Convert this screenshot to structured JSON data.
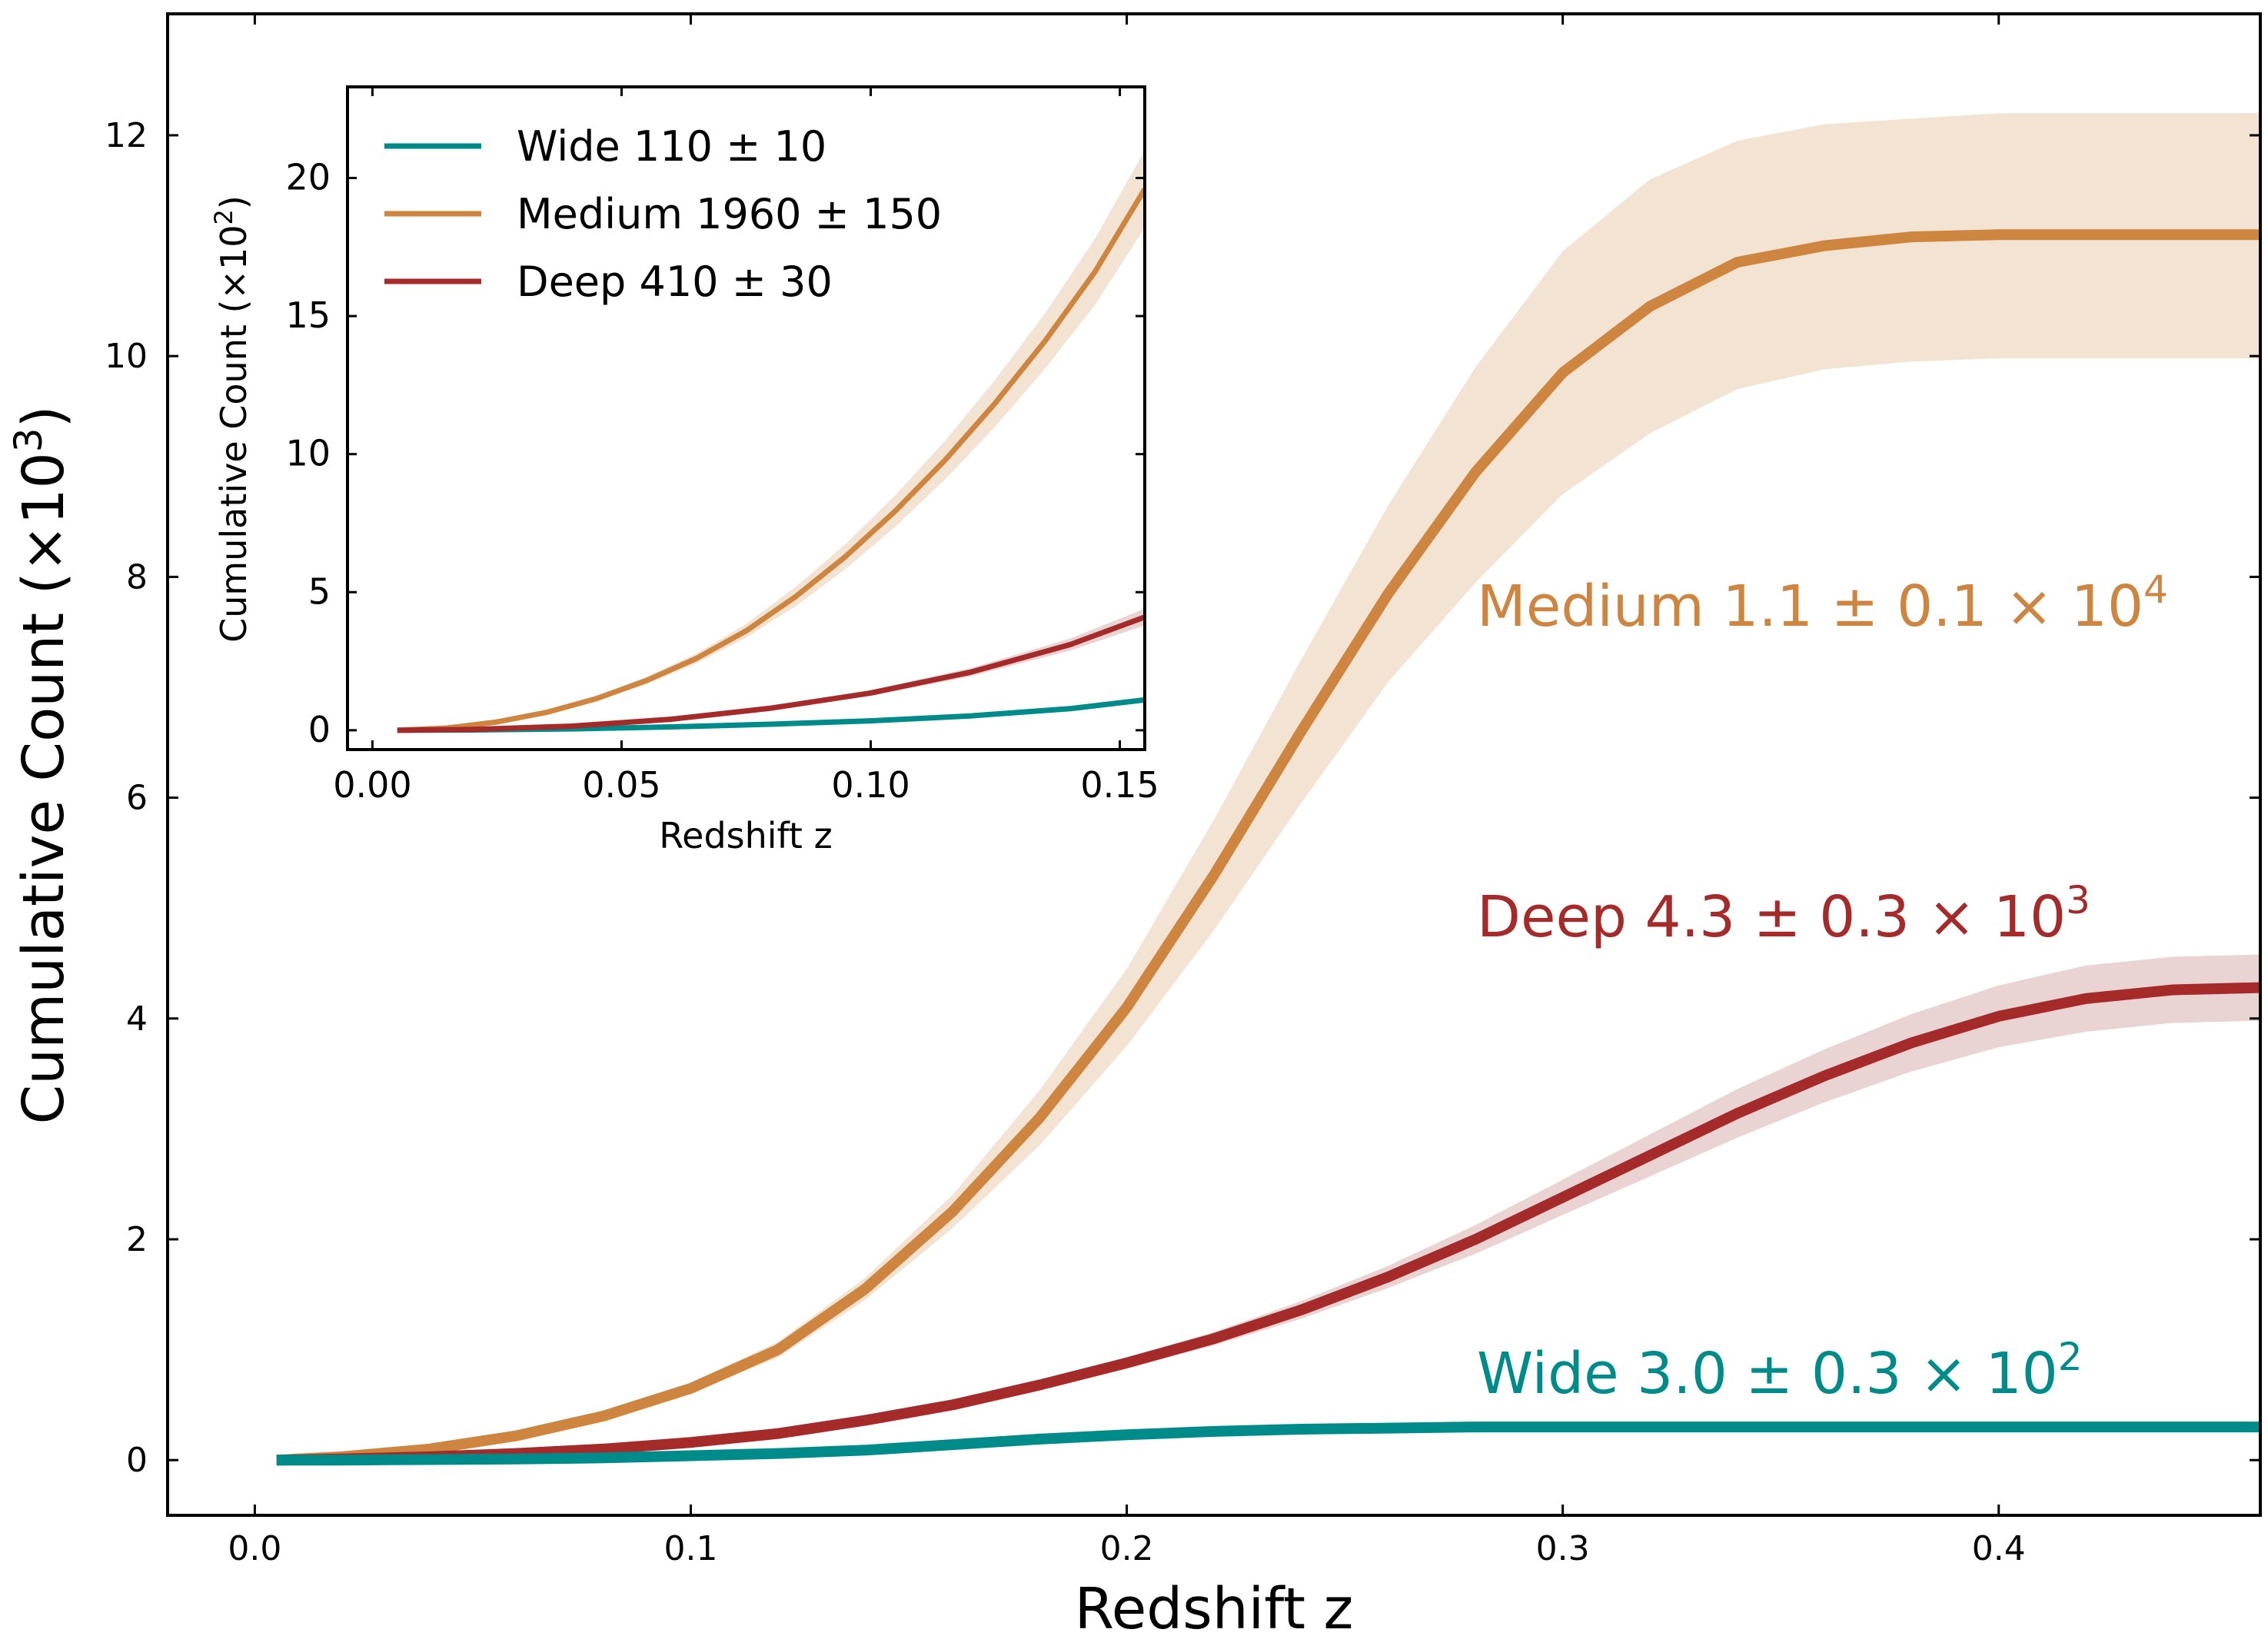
{
  "chart_data": [
    {
      "id": "main",
      "type": "line",
      "xlabel": "Redshift z",
      "ylabel": "Cumulative Count",
      "ylabel_unit": "(×10",
      "ylabel_unit_exp": "3",
      "ylabel_unit_close": ")",
      "xlim": [
        -0.02,
        0.46
      ],
      "ylim": [
        -0.5,
        13.1
      ],
      "xticks": [
        0.0,
        0.1,
        0.2,
        0.3,
        0.4
      ],
      "xtick_labels": [
        "0.0",
        "0.1",
        "0.2",
        "0.3",
        "0.4"
      ],
      "yticks": [
        0,
        2,
        4,
        6,
        8,
        10,
        12
      ],
      "ytick_labels": [
        "0",
        "2",
        "4",
        "6",
        "8",
        "10",
        "12"
      ],
      "series": [
        {
          "name": "Medium",
          "color": "#CD853F",
          "band_color": "#F3E3D3",
          "x": [
            0.005,
            0.02,
            0.04,
            0.06,
            0.08,
            0.1,
            0.12,
            0.14,
            0.16,
            0.18,
            0.2,
            0.22,
            0.24,
            0.26,
            0.28,
            0.3,
            0.32,
            0.34,
            0.36,
            0.38,
            0.4,
            0.42,
            0.44,
            0.46
          ],
          "y": [
            0.0,
            0.03,
            0.1,
            0.22,
            0.4,
            0.65,
            1.0,
            1.55,
            2.25,
            3.1,
            4.1,
            5.3,
            6.6,
            7.85,
            8.95,
            9.85,
            10.45,
            10.85,
            11.0,
            11.08,
            11.1,
            11.1,
            11.1,
            11.1
          ],
          "y_low": [
            0.0,
            0.03,
            0.09,
            0.2,
            0.37,
            0.6,
            0.93,
            1.45,
            2.1,
            2.85,
            3.75,
            4.8,
            5.95,
            7.05,
            7.95,
            8.75,
            9.3,
            9.7,
            9.88,
            9.95,
            9.98,
            9.98,
            9.98,
            9.98
          ],
          "y_high": [
            0.0,
            0.03,
            0.11,
            0.24,
            0.43,
            0.7,
            1.07,
            1.65,
            2.4,
            3.35,
            4.45,
            5.8,
            7.25,
            8.65,
            9.9,
            10.95,
            11.6,
            11.95,
            12.1,
            12.15,
            12.2,
            12.2,
            12.2,
            12.2
          ]
        },
        {
          "name": "Deep",
          "color": "#A52A2A",
          "band_color": "#E9D3D3",
          "x": [
            0.005,
            0.02,
            0.04,
            0.06,
            0.08,
            0.1,
            0.12,
            0.14,
            0.16,
            0.18,
            0.2,
            0.22,
            0.24,
            0.26,
            0.28,
            0.3,
            0.32,
            0.34,
            0.36,
            0.38,
            0.4,
            0.42,
            0.44,
            0.46
          ],
          "y": [
            0.0,
            0.01,
            0.03,
            0.06,
            0.1,
            0.16,
            0.24,
            0.36,
            0.5,
            0.68,
            0.88,
            1.1,
            1.36,
            1.66,
            2.0,
            2.38,
            2.76,
            3.14,
            3.48,
            3.78,
            4.02,
            4.18,
            4.26,
            4.28
          ],
          "y_low": [
            0.0,
            0.01,
            0.03,
            0.06,
            0.1,
            0.15,
            0.23,
            0.34,
            0.47,
            0.64,
            0.83,
            1.04,
            1.28,
            1.56,
            1.87,
            2.22,
            2.57,
            2.92,
            3.24,
            3.52,
            3.74,
            3.88,
            3.96,
            3.98
          ],
          "y_high": [
            0.0,
            0.01,
            0.03,
            0.06,
            0.1,
            0.17,
            0.25,
            0.38,
            0.53,
            0.72,
            0.93,
            1.16,
            1.44,
            1.76,
            2.13,
            2.54,
            2.95,
            3.36,
            3.72,
            4.04,
            4.3,
            4.48,
            4.56,
            4.58
          ]
        },
        {
          "name": "Wide",
          "color": "#008B8B",
          "band_color": "#CCE8E8",
          "x": [
            0.005,
            0.02,
            0.04,
            0.06,
            0.08,
            0.1,
            0.12,
            0.14,
            0.16,
            0.18,
            0.2,
            0.22,
            0.24,
            0.26,
            0.28,
            0.3,
            0.32,
            0.34,
            0.36,
            0.38,
            0.4,
            0.42,
            0.44,
            0.46
          ],
          "y": [
            0.0,
            0.0,
            0.005,
            0.01,
            0.02,
            0.04,
            0.06,
            0.09,
            0.14,
            0.19,
            0.23,
            0.26,
            0.28,
            0.29,
            0.3,
            0.3,
            0.3,
            0.3,
            0.3,
            0.3,
            0.3,
            0.3,
            0.3,
            0.3
          ],
          "y_low": [
            0.0,
            0.0,
            0.005,
            0.01,
            0.02,
            0.035,
            0.055,
            0.08,
            0.125,
            0.17,
            0.21,
            0.24,
            0.255,
            0.265,
            0.27,
            0.27,
            0.27,
            0.27,
            0.27,
            0.27,
            0.27,
            0.27,
            0.27,
            0.27
          ],
          "y_high": [
            0.0,
            0.0,
            0.005,
            0.01,
            0.02,
            0.045,
            0.065,
            0.1,
            0.155,
            0.21,
            0.25,
            0.28,
            0.305,
            0.315,
            0.33,
            0.33,
            0.33,
            0.33,
            0.33,
            0.33,
            0.33,
            0.33,
            0.33,
            0.33
          ]
        }
      ],
      "annotations": [
        {
          "series": "Medium",
          "prefix": "Medium 1.1 ± 0.1 × 10",
          "exp": "4",
          "color": "#CD853F"
        },
        {
          "series": "Deep",
          "prefix": "Deep 4.3 ± 0.3 × 10",
          "exp": "3",
          "color": "#A52A2A"
        },
        {
          "series": "Wide",
          "prefix": "Wide 3.0 ± 0.3 × 10",
          "exp": "2",
          "color": "#008B8B"
        }
      ]
    },
    {
      "id": "inset",
      "type": "line",
      "xlabel": "Redshift z",
      "ylabel": "Cumulative Count",
      "ylabel_unit": "(×10",
      "ylabel_unit_exp": "2",
      "ylabel_unit_close": ")",
      "xlim": [
        -0.005,
        0.155
      ],
      "ylim": [
        -0.7,
        23.3
      ],
      "xticks": [
        0.0,
        0.05,
        0.1,
        0.15
      ],
      "xtick_labels": [
        "0.00",
        "0.05",
        "0.10",
        "0.15"
      ],
      "yticks": [
        0,
        5,
        10,
        15,
        20
      ],
      "ytick_labels": [
        "0",
        "5",
        "10",
        "15",
        "20"
      ],
      "series": [
        {
          "name": "Wide",
          "legend_label": "Wide 110 ± 10",
          "color": "#008B8B",
          "band_color": "#CCE8E8",
          "x": [
            0.005,
            0.02,
            0.04,
            0.06,
            0.08,
            0.1,
            0.12,
            0.14,
            0.155
          ],
          "y": [
            0.0,
            0.01,
            0.05,
            0.12,
            0.22,
            0.34,
            0.52,
            0.78,
            1.1
          ],
          "y_low": [
            0.0,
            0.01,
            0.04,
            0.11,
            0.2,
            0.31,
            0.47,
            0.71,
            1.0
          ],
          "y_high": [
            0.0,
            0.01,
            0.06,
            0.13,
            0.24,
            0.37,
            0.57,
            0.85,
            1.2
          ]
        },
        {
          "name": "Medium",
          "legend_label": "Medium 1960 ± 150",
          "color": "#CD853F",
          "band_color": "#F3E3D3",
          "x": [
            0.005,
            0.015,
            0.025,
            0.035,
            0.045,
            0.055,
            0.065,
            0.075,
            0.085,
            0.095,
            0.105,
            0.115,
            0.125,
            0.135,
            0.145,
            0.155
          ],
          "y": [
            0.0,
            0.08,
            0.3,
            0.65,
            1.15,
            1.8,
            2.6,
            3.6,
            4.85,
            6.3,
            7.95,
            9.8,
            11.85,
            14.1,
            16.6,
            19.6
          ],
          "y_low": [
            0.0,
            0.07,
            0.28,
            0.6,
            1.07,
            1.67,
            2.42,
            3.35,
            4.5,
            5.85,
            7.38,
            9.1,
            11.0,
            13.1,
            15.4,
            18.2
          ],
          "y_high": [
            0.0,
            0.09,
            0.32,
            0.7,
            1.23,
            1.93,
            2.78,
            3.85,
            5.2,
            6.75,
            8.52,
            10.5,
            12.7,
            15.1,
            17.8,
            21.0
          ]
        },
        {
          "name": "Deep",
          "legend_label": "Deep 410 ± 30",
          "color": "#A52A2A",
          "band_color": "#E9D3D3",
          "x": [
            0.005,
            0.02,
            0.04,
            0.06,
            0.08,
            0.1,
            0.12,
            0.14,
            0.155
          ],
          "y": [
            0.0,
            0.03,
            0.15,
            0.4,
            0.8,
            1.35,
            2.1,
            3.1,
            4.1
          ],
          "y_low": [
            0.0,
            0.03,
            0.14,
            0.37,
            0.74,
            1.25,
            1.95,
            2.88,
            3.8
          ],
          "y_high": [
            0.0,
            0.03,
            0.16,
            0.43,
            0.86,
            1.45,
            2.25,
            3.32,
            4.4
          ]
        }
      ]
    }
  ]
}
